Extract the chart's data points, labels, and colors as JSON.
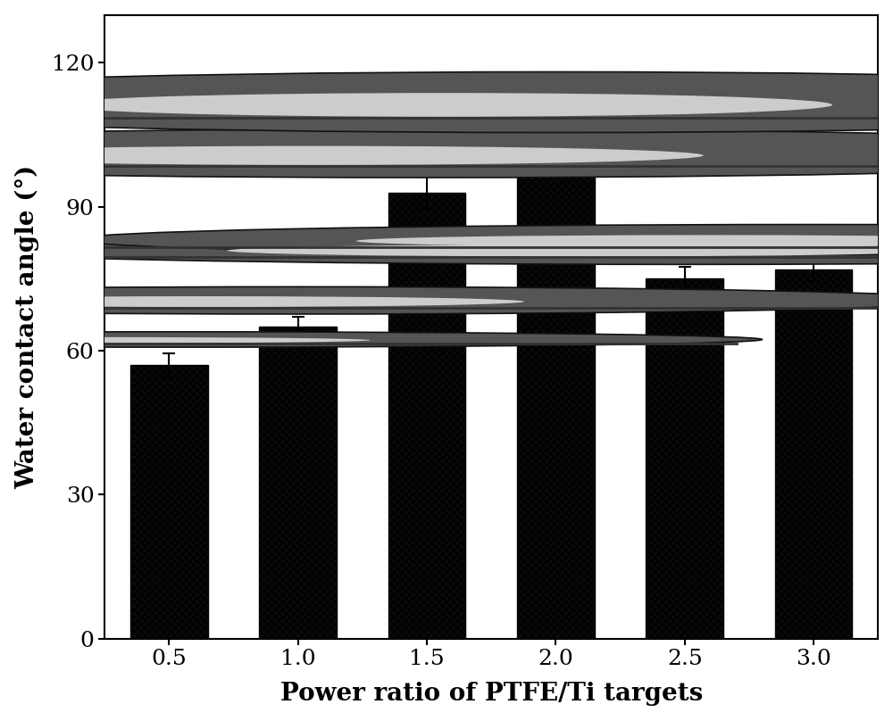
{
  "categories": [
    "0.5",
    "1.0",
    "1.5",
    "2.0",
    "2.5",
    "3.0"
  ],
  "values": [
    57.0,
    65.0,
    93.0,
    103.5,
    75.0,
    77.0
  ],
  "errors": [
    2.5,
    2.0,
    3.5,
    3.0,
    2.5,
    2.5
  ],
  "bar_color": "#0a0a0a",
  "hatch": "xxxx",
  "xlabel": "Power ratio of PTFE/Ti targets",
  "ylabel": "Water contact angle (°)",
  "ylim": [
    0,
    130
  ],
  "yticks": [
    0,
    30,
    60,
    90,
    120
  ],
  "xlabel_fontsize": 20,
  "ylabel_fontsize": 20,
  "tick_fontsize": 18,
  "bar_width": 0.6,
  "background_color": "#ffffff",
  "edge_color": "#000000",
  "error_color": "#000000",
  "capsize": 5
}
